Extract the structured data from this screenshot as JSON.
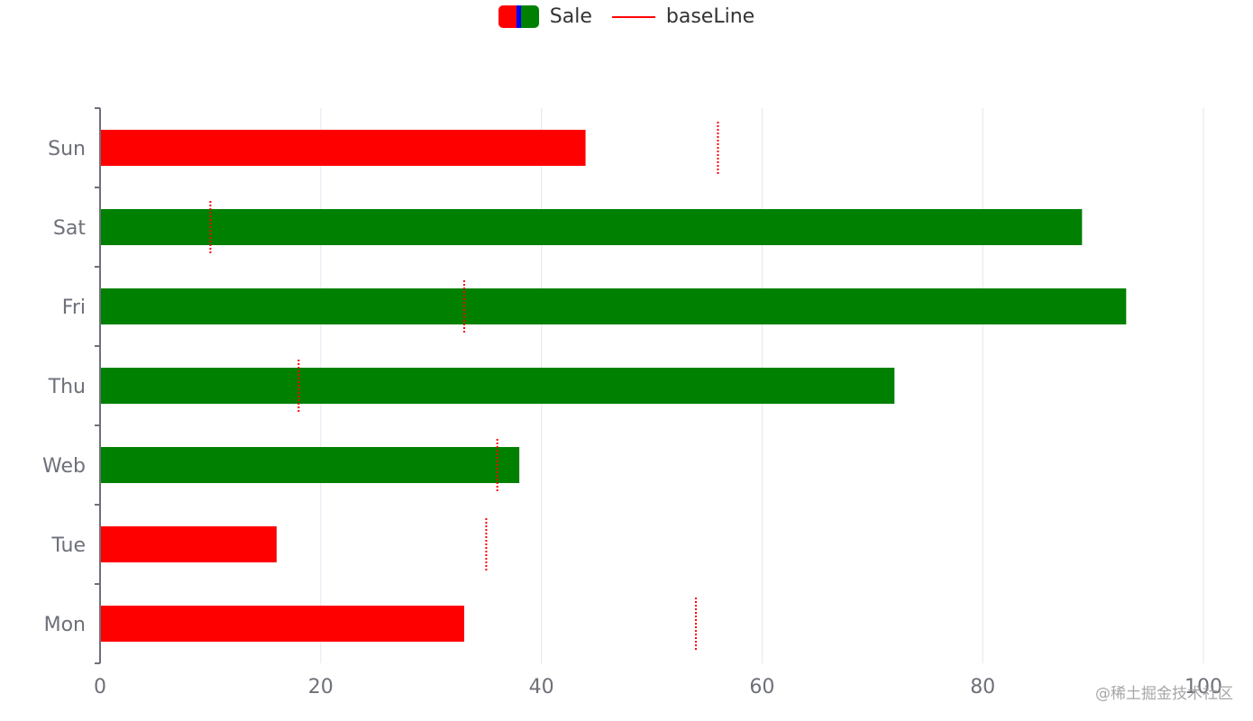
{
  "legend": {
    "items": [
      {
        "label": "Sale",
        "type": "bar",
        "swatch_colors": [
          "#ff0000",
          "#0000ff",
          "#008000"
        ]
      },
      {
        "label": "baseLine",
        "type": "line",
        "color": "#ff0000"
      }
    ]
  },
  "colors": {
    "above_baseline": "#008000",
    "below_baseline": "#ff0000",
    "baseline_marker": "#ff0000",
    "axis": "#6e7079",
    "grid": "#e0e6f1"
  },
  "watermark": "@稀土掘金技术社区",
  "chart_data": {
    "type": "bar",
    "orientation": "horizontal",
    "title": "",
    "xlabel": "",
    "ylabel": "",
    "categories": [
      "Mon",
      "Tue",
      "Web",
      "Thu",
      "Fri",
      "Sat",
      "Sun"
    ],
    "series": [
      {
        "name": "Sale",
        "type": "bar",
        "values": [
          33,
          16,
          38,
          72,
          93,
          89,
          44
        ]
      },
      {
        "name": "baseLine",
        "type": "marker",
        "values": [
          54,
          35,
          36,
          18,
          33,
          10,
          56
        ]
      }
    ],
    "bar_colors": [
      "#ff0000",
      "#ff0000",
      "#008000",
      "#008000",
      "#008000",
      "#008000",
      "#ff0000"
    ],
    "xlim": [
      0,
      100
    ],
    "x_ticks": [
      0,
      20,
      40,
      60,
      80,
      100
    ],
    "grid": true,
    "legend_position": "top-center"
  }
}
